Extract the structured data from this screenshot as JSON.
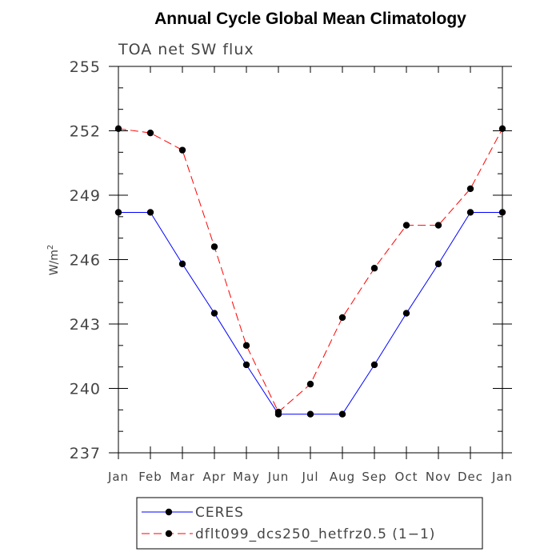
{
  "chart_data": {
    "type": "line",
    "title": "Annual Cycle Global Mean Climatology",
    "subtitle": "TOA net SW flux",
    "ylabel": "W/m",
    "ylabel_sup": "2",
    "categories": [
      "Jan",
      "Feb",
      "Mar",
      "Apr",
      "May",
      "Jun",
      "Jul",
      "Aug",
      "Sep",
      "Oct",
      "Nov",
      "Dec",
      "Jan"
    ],
    "ylim": [
      237,
      255
    ],
    "yticks": [
      237,
      240,
      243,
      246,
      249,
      252,
      255
    ],
    "legend_position": "bottom",
    "series": [
      {
        "name": "CERES",
        "color": "#0000ff",
        "dash": "solid",
        "values": [
          248.2,
          248.2,
          245.8,
          243.5,
          241.1,
          238.8,
          238.8,
          238.8,
          241.1,
          243.5,
          245.8,
          248.2,
          248.2
        ]
      },
      {
        "name": "dflt099_dcs250_hetfrz0.5 (1−1)",
        "color": "#ff0000",
        "dash": "dashed",
        "values": [
          252.1,
          251.9,
          251.1,
          246.6,
          242.0,
          238.9,
          240.2,
          243.3,
          245.6,
          247.6,
          247.6,
          249.3,
          252.1
        ]
      }
    ]
  }
}
